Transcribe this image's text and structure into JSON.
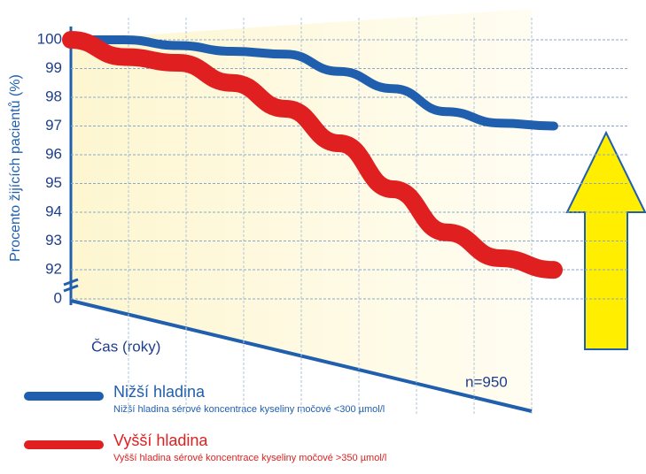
{
  "chart_data": {
    "type": "line",
    "y_label": "Procento žijících pacientů (%)",
    "x_label": "Čas (roky)",
    "annotation": "n=950",
    "categories": [
      null,
      null,
      null,
      null,
      null,
      null,
      null,
      null,
      null,
      null
    ],
    "series": [
      {
        "name": "Nižší hladina",
        "description": "Nižší hladina sérové koncentrace kyseliny močové <300 µmol/l",
        "color": "#1f5fae",
        "values": [
          100,
          100,
          99.8,
          99.6,
          99.5,
          98.9,
          98.3,
          97.5,
          97.1,
          97.0
        ]
      },
      {
        "name": "Vyšší hladina",
        "description": "Vyšší hladina sérové koncentrace kyseliny močové >350 µmol/l",
        "color": "#e02020",
        "values": [
          100,
          99.4,
          99.2,
          98.5,
          97.6,
          96.4,
          94.8,
          93.3,
          92.4,
          91.5
        ]
      }
    ],
    "ylim": [
      0,
      100
    ],
    "axis_break": [
      0,
      92
    ],
    "yticks": [
      100,
      99,
      98,
      97,
      96,
      95,
      94,
      93,
      92,
      0
    ],
    "grid": true
  }
}
